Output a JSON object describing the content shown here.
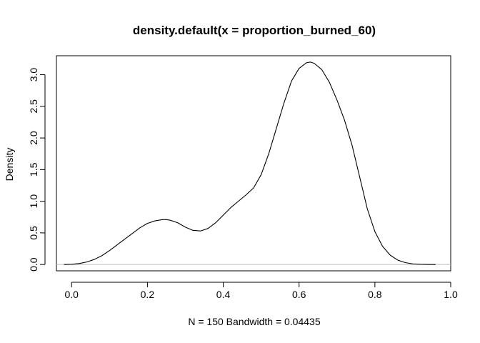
{
  "chart_data": {
    "type": "line",
    "title": "density.default(x = proportion_burned_60)",
    "xlabel": "N = 150   Bandwidth = 0.04435",
    "ylabel": "Density",
    "xlim": [
      -0.04,
      1.0
    ],
    "ylim": [
      -0.1,
      3.3
    ],
    "xticks": [
      0.0,
      0.2,
      0.4,
      0.6,
      0.8,
      1.0
    ],
    "xtick_labels": [
      "0.0",
      "0.2",
      "0.4",
      "0.6",
      "0.8",
      "1.0"
    ],
    "yticks": [
      0.0,
      0.5,
      1.0,
      1.5,
      2.0,
      2.5,
      3.0
    ],
    "ytick_labels": [
      "0.0",
      "0.5",
      "1.0",
      "1.5",
      "2.0",
      "2.5",
      "3.0"
    ],
    "grid": false,
    "baseline": 0,
    "colors": {
      "line": "#000000",
      "baseline": "#bebebe"
    },
    "series": [
      {
        "x": [
          -0.02,
          0.0,
          0.02,
          0.04,
          0.06,
          0.08,
          0.1,
          0.12,
          0.14,
          0.16,
          0.18,
          0.2,
          0.22,
          0.24,
          0.25,
          0.26,
          0.28,
          0.3,
          0.32,
          0.34,
          0.36,
          0.38,
          0.4,
          0.42,
          0.44,
          0.46,
          0.48,
          0.5,
          0.52,
          0.54,
          0.56,
          0.58,
          0.6,
          0.62,
          0.63,
          0.64,
          0.66,
          0.68,
          0.7,
          0.72,
          0.74,
          0.76,
          0.78,
          0.8,
          0.82,
          0.84,
          0.86,
          0.88,
          0.9,
          0.92,
          0.94,
          0.96
        ],
        "y": [
          0.0,
          0.004,
          0.015,
          0.04,
          0.08,
          0.14,
          0.22,
          0.31,
          0.4,
          0.49,
          0.58,
          0.65,
          0.69,
          0.71,
          0.71,
          0.7,
          0.66,
          0.59,
          0.54,
          0.53,
          0.57,
          0.66,
          0.78,
          0.9,
          1.0,
          1.1,
          1.21,
          1.42,
          1.75,
          2.15,
          2.55,
          2.9,
          3.1,
          3.19,
          3.2,
          3.18,
          3.08,
          2.88,
          2.6,
          2.28,
          1.88,
          1.38,
          0.88,
          0.52,
          0.29,
          0.15,
          0.07,
          0.03,
          0.01,
          0.004,
          0.001,
          0.0
        ]
      }
    ]
  }
}
